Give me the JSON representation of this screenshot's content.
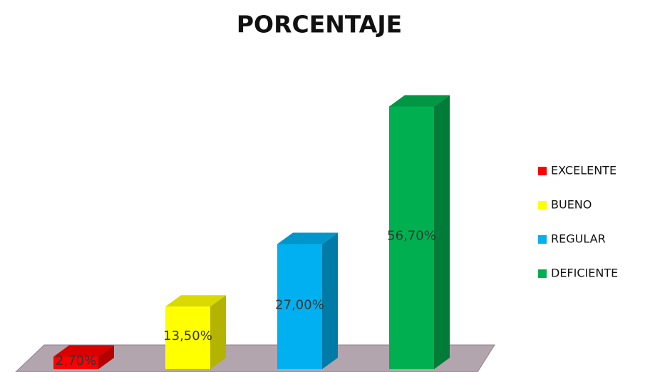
{
  "chart_data": {
    "type": "bar3d",
    "title": "PORCENTAJE",
    "categories": [
      "EXCELENTE",
      "BUENO",
      "REGULAR",
      "DEFICIENTE"
    ],
    "values": [
      2.7,
      13.5,
      27.0,
      56.7
    ],
    "value_labels": [
      "2,70%",
      "13,50%",
      "27,00%",
      "56,70%"
    ],
    "colors": [
      "#ff0000",
      "#ffff00",
      "#00b0f0",
      "#00b050"
    ],
    "legend": "right"
  }
}
